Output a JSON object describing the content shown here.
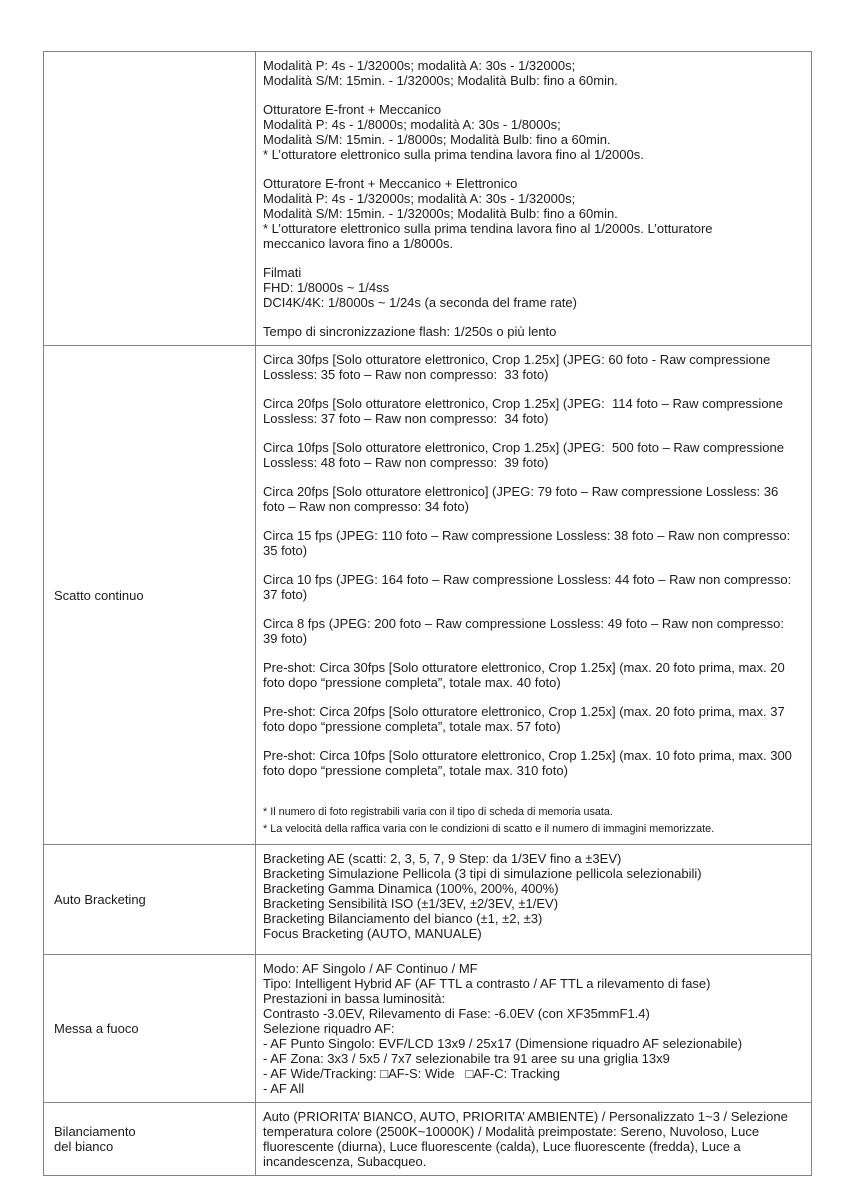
{
  "document": {
    "background_color": "#ffffff",
    "border_color": "#828282",
    "text_color": "#1c1c1c"
  },
  "table": {
    "rows": [
      {
        "label_lines": [],
        "min_height": 293,
        "paragraphs": [
          {
            "type": "lines",
            "lines": [
              "Modalità P: 4s - 1/32000s; modalità A: 30s - 1/32000s;",
              "Modalità S/M: 15min. - 1/32000s; Modalità Bulb: fino a 60min."
            ]
          },
          {
            "type": "lines",
            "lines": [
              "Otturatore E-front + Meccanico",
              "Modalità P: 4s - 1/8000s; modalità A: 30s - 1/8000s;",
              "Modalità S/M: 15min. - 1/8000s; Modalità Bulb: fino a 60min.",
              "* L’otturatore elettronico sulla prima tendina lavora fino al 1/2000s."
            ]
          },
          {
            "type": "lines",
            "lines": [
              "Otturatore E-front + Meccanico + Elettronico",
              "Modalità P: 4s - 1/32000s; modalità A: 30s - 1/32000s;",
              "Modalità S/M: 15min. - 1/32000s; Modalità Bulb: fino a 60min.",
              "* L’otturatore elettronico sulla prima tendina lavora fino al 1/2000s. L’otturatore",
              "meccanico lavora fino a 1/8000s."
            ]
          },
          {
            "type": "lines",
            "lines": [
              "Filmati",
              "FHD: 1/8000s ~ 1/4ss",
              "DCI4K/4K: 1/8000s ~ 1/24s (a seconda del frame rate)"
            ]
          },
          {
            "type": "lines",
            "lines": [
              "Tempo di sincronizzazione flash: 1/250s o più lento"
            ]
          }
        ]
      },
      {
        "label_lines": [
          "Scatto continuo"
        ],
        "min_height": 484,
        "paragraphs": [
          {
            "type": "flow",
            "text": "Circa 30fps [Solo otturatore elettronico, Crop 1.25x] (JPEG: 60 foto - Raw compressione Lossless: 35 foto – Raw non compresso:  33 foto)"
          },
          {
            "type": "flow",
            "text": "Circa 20fps [Solo otturatore elettronico, Crop 1.25x] (JPEG:  114 foto – Raw compressione Lossless: 37 foto – Raw non compresso:  34 foto)"
          },
          {
            "type": "flow",
            "text": "Circa 10fps [Solo otturatore elettronico, Crop 1.25x] (JPEG:  500 foto – Raw compressione Lossless: 48 foto – Raw non compresso:  39 foto)"
          },
          {
            "type": "flow",
            "text": "Circa 20fps [Solo otturatore elettronico] (JPEG: 79 foto – Raw compressione Lossless: 36 foto – Raw non compresso: 34 foto)"
          },
          {
            "type": "flow",
            "text": "Circa 15 fps (JPEG: 110 foto – Raw compressione Lossless: 38 foto – Raw non compresso: 35 foto)"
          },
          {
            "type": "flow",
            "text": "Circa 10 fps (JPEG: 164 foto – Raw compressione Lossless: 44 foto – Raw non compresso: 37 foto)"
          },
          {
            "type": "flow",
            "text": "Circa 8 fps (JPEG: 200 foto – Raw compressione Lossless: 49 foto – Raw non compresso: 39 foto)"
          },
          {
            "type": "flow",
            "text": "Pre-shot: Circa 30fps [Solo otturatore elettronico, Crop 1.25x] (max. 20 foto prima, max. 20 foto dopo “pressione completa”, totale max. 40 foto)"
          },
          {
            "type": "flow",
            "text": "Pre-shot: Circa 20fps [Solo otturatore elettronico, Crop 1.25x] (max. 20 foto prima, max. 37 foto dopo “pressione completa”, totale max. 57 foto)"
          },
          {
            "type": "flow",
            "text": "Pre-shot: Circa 10fps [Solo otturatore elettronico, Crop 1.25x] (max. 10 foto prima, max. 300 foto dopo “pressione completa”, totale max. 310 foto)"
          },
          {
            "type": "footnotes",
            "lines": [
              "* Il numero di foto registrabili varia con il tipo di scheda di memoria usata.",
              "* La velocità della raffica varia con le condizioni di scatto e il numero di immagini memorizzate."
            ]
          }
        ]
      },
      {
        "label_lines": [
          "Auto Bracketing"
        ],
        "min_height": 110,
        "paragraphs": [
          {
            "type": "lines",
            "lines": [
              "Bracketing AE (scatti: 2, 3, 5, 7, 9 Step: da 1/3EV fino a ±3EV)",
              "Bracketing Simulazione Pellicola (3 tipi di simulazione pellicola selezionabili)",
              "Bracketing Gamma Dinamica (100%, 200%, 400%)",
              "Bracketing Sensibilità ISO (±1/3EV, ±2/3EV, ±1/EV)",
              "Bracketing Bilanciamento del bianco (±1, ±2, ±3)",
              "Focus Bracketing (AUTO, MANUALE)"
            ]
          }
        ]
      },
      {
        "label_lines": [
          "Messa a fuoco"
        ],
        "min_height": 134,
        "paragraphs": [
          {
            "type": "lines",
            "lines": [
              "Modo: AF Singolo / AF Continuo / MF",
              "Tipo: Intelligent Hybrid AF (AF TTL a contrasto / AF TTL a rilevamento di fase)",
              "Prestazioni in bassa luminosità:",
              "Contrasto -3.0EV, Rilevamento di Fase: -6.0EV (con XF35mmF1.4)",
              "Selezione riquadro AF:",
              "- AF Punto Singolo: EVF/LCD 13x9 / 25x17 (Dimensione riquadro AF selezionabile)",
              "- AF Zona: 3x3 / 5x5 / 7x7 selezionabile tra 91 aree su una griglia 13x9",
              "- AF Wide/Tracking: □AF-S: Wide   □AF-C: Tracking",
              "- AF All"
            ]
          }
        ]
      },
      {
        "label_lines": [
          "Bilanciamento",
          "del bianco"
        ],
        "min_height": 72,
        "paragraphs": [
          {
            "type": "flow",
            "text": "Auto (PRIORITA’ BIANCO, AUTO, PRIORITA’ AMBIENTE) / Personalizzato 1~3 / Selezione temperatura colore (2500K~10000K) / Modalità preimpostate: Sereno, Nuvoloso, Luce fluorescente (diurna), Luce fluorescente (calda), Luce fluorescente (fredda), Luce a incandescenza, Subacqueo."
          }
        ]
      }
    ]
  }
}
